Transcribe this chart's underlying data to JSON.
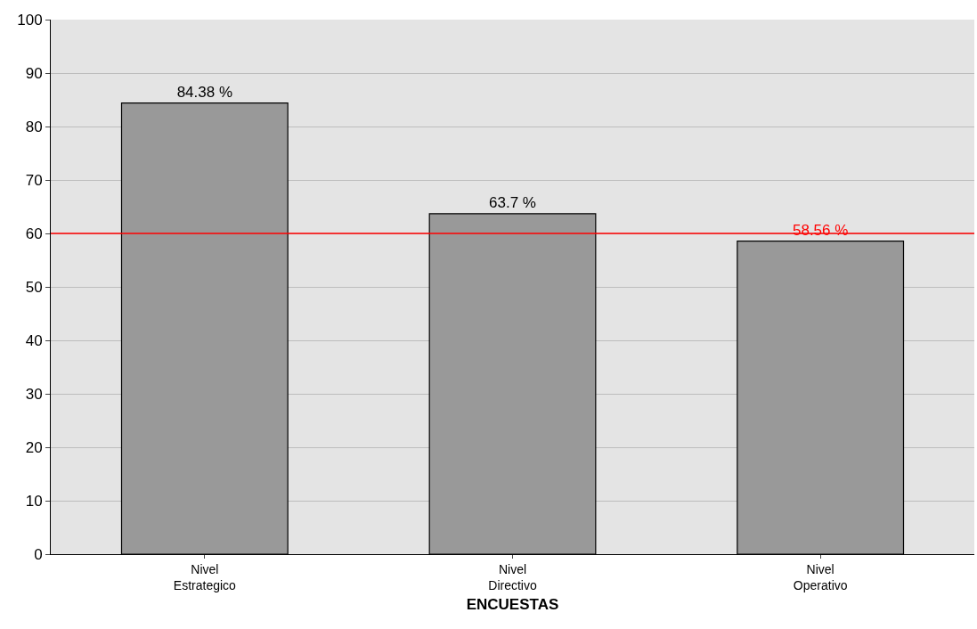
{
  "chart_data": {
    "type": "bar",
    "xlabel": "ENCUESTAS",
    "categories": [
      "Nivel\nEstrategico",
      "Nivel\nDirectivo",
      "Nivel\nOperativo"
    ],
    "values": [
      84.38,
      63.7,
      58.56
    ],
    "value_labels": [
      "84.38 %",
      "63.7 %",
      "58.56 %"
    ],
    "color": "#999999",
    "ylim": [
      0,
      100
    ],
    "yticks": [
      0,
      10,
      20,
      30,
      40,
      50,
      60,
      70,
      80,
      90,
      100
    ],
    "grid": "y",
    "ref_lines": [
      {
        "axis": "y",
        "value": 60,
        "color": "#ff0000"
      }
    ]
  }
}
